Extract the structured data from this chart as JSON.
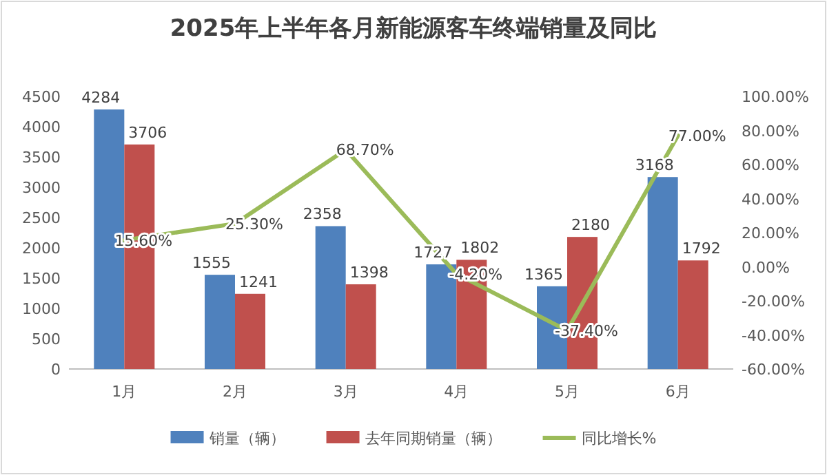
{
  "chart_data": {
    "type": "bar",
    "title": "2025年上半年各月新能源客车终端销量及同比",
    "categories": [
      "1月",
      "2月",
      "3月",
      "4月",
      "5月",
      "6月"
    ],
    "series": [
      {
        "name": "销量（辆）",
        "color": "#4f81bd",
        "values": [
          4284,
          1555,
          2358,
          1727,
          1365,
          3168
        ]
      },
      {
        "name": "去年同期销量（辆）",
        "color": "#c0504d",
        "values": [
          3706,
          1241,
          1398,
          1802,
          2180,
          1792
        ]
      },
      {
        "name": "同比增长%",
        "type": "line",
        "axis": "y2",
        "color": "#9bbb59",
        "values": [
          15.6,
          25.3,
          68.7,
          -4.2,
          -37.4,
          77.0
        ],
        "value_labels": [
          "15.60%",
          "25.30%",
          "68.70%",
          "-4.20%",
          "-37.40%",
          "77.00%"
        ]
      }
    ],
    "ylim": [
      0,
      4500
    ],
    "yticks": [
      0,
      500,
      1000,
      1500,
      2000,
      2500,
      3000,
      3500,
      4000,
      4500
    ],
    "y2lim": [
      -60,
      100
    ],
    "y2ticks": [
      {
        "value": -60,
        "label": "-60.00%"
      },
      {
        "value": -40,
        "label": "-40.00%"
      },
      {
        "value": -20,
        "label": "-20.00%"
      },
      {
        "value": 0,
        "label": "0.00%"
      },
      {
        "value": 20,
        "label": "20.00%"
      },
      {
        "value": 40,
        "label": "40.00%"
      },
      {
        "value": 60,
        "label": "60.00%"
      },
      {
        "value": 80,
        "label": "80.00%"
      },
      {
        "value": 100,
        "label": "100.00%"
      }
    ],
    "data_labels": true,
    "legend": "bottom",
    "grid": false,
    "marker": "none"
  }
}
